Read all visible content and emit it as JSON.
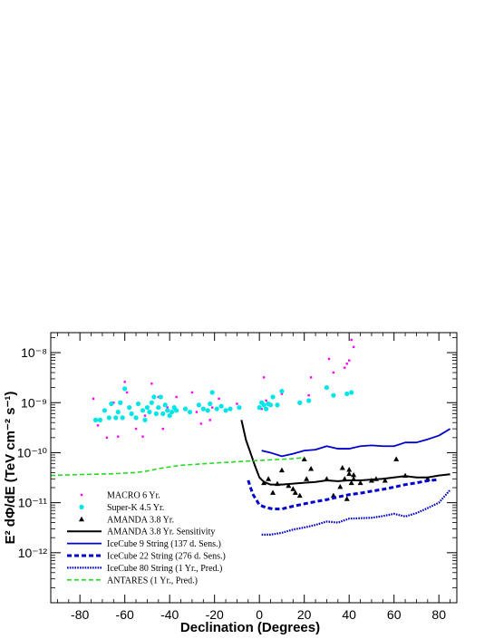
{
  "chart_data": {
    "type": "scatter",
    "title": "",
    "xlabel": "Declination (Degrees)",
    "ylabel": "E² dΦ/dE (TeV cm⁻² s⁻¹)",
    "xlim": [
      -93,
      88
    ],
    "ylim_log10": [
      -13,
      -7.6
    ],
    "y_scale": "log",
    "x_ticks": [
      -80,
      -60,
      -40,
      -20,
      0,
      20,
      40,
      60,
      80
    ],
    "x_tick_labels": [
      "-80",
      "-60",
      "-40",
      "-20",
      "0",
      "20",
      "40",
      "60",
      "80"
    ],
    "y_ticks_log10": [
      -12,
      -11,
      -10,
      -9,
      -8
    ],
    "y_tick_labels": [
      "10⁻¹²",
      "10⁻¹¹",
      "10⁻¹⁰",
      "10⁻⁹",
      "10⁻⁸"
    ],
    "legend_position": "lower-left",
    "series": [
      {
        "name": "MACRO 6 Yr.",
        "kind": "points",
        "marker": "dot",
        "color": "#ff00ff",
        "points": [
          [
            -74,
            1.2e-09
          ],
          [
            -72,
            3.5e-10
          ],
          [
            -68,
            2e-10
          ],
          [
            -65,
            1e-09
          ],
          [
            -63,
            2.1e-10
          ],
          [
            -60,
            2.6e-09
          ],
          [
            -59,
            1.6e-09
          ],
          [
            -55,
            3e-10
          ],
          [
            -52,
            2.1e-10
          ],
          [
            -51,
            5.5e-10
          ],
          [
            -48,
            2.4e-09
          ],
          [
            -45,
            1.3e-09
          ],
          [
            -43,
            3e-10
          ],
          [
            -41,
            8e-10
          ],
          [
            -37,
            1.3e-09
          ],
          [
            -30,
            1.6e-09
          ],
          [
            -28,
            6.5e-10
          ],
          [
            -26,
            3.8e-10
          ],
          [
            -22,
            4.5e-10
          ],
          [
            -21,
            8e-10
          ],
          [
            -18,
            1.2e-09
          ],
          [
            -10,
            9.5e-10
          ],
          [
            1,
            7.5e-10
          ],
          [
            2,
            3.2e-09
          ],
          [
            3,
            1.1e-09
          ],
          [
            8,
            8.5e-10
          ],
          [
            10,
            1.5e-09
          ],
          [
            18,
            9.5e-10
          ],
          [
            22,
            1.4e-09
          ],
          [
            23,
            3.2e-09
          ],
          [
            31,
            7.5e-09
          ],
          [
            33,
            4e-09
          ],
          [
            38,
            5e-09
          ],
          [
            39,
            6e-09
          ],
          [
            41,
            1.8e-08
          ],
          [
            42,
            1.3e-08
          ],
          [
            40,
            7e-09
          ]
        ]
      },
      {
        "name": "Super-K 4.5 Yr.",
        "kind": "points",
        "marker": "circle",
        "color": "#00e5e5",
        "points": [
          [
            -73,
            4.5e-10
          ],
          [
            -71,
            4.5e-10
          ],
          [
            -69,
            7e-10
          ],
          [
            -67,
            5e-10
          ],
          [
            -66,
            9.5e-10
          ],
          [
            -64,
            5e-10
          ],
          [
            -63,
            6.5e-10
          ],
          [
            -62,
            1e-09
          ],
          [
            -61,
            5e-10
          ],
          [
            -60,
            1.9e-09
          ],
          [
            -58,
            8e-10
          ],
          [
            -57,
            6e-10
          ],
          [
            -55,
            5e-10
          ],
          [
            -54,
            9.5e-10
          ],
          [
            -52,
            7e-10
          ],
          [
            -51,
            4.5e-10
          ],
          [
            -50,
            8e-10
          ],
          [
            -49,
            6.5e-10
          ],
          [
            -48,
            1e-09
          ],
          [
            -47,
            1.3e-09
          ],
          [
            -46,
            6e-10
          ],
          [
            -45,
            8e-10
          ],
          [
            -44,
            1.3e-09
          ],
          [
            -43,
            6e-10
          ],
          [
            -42,
            9e-10
          ],
          [
            -41,
            7e-10
          ],
          [
            -40,
            5.5e-10
          ],
          [
            -39,
            6.5e-10
          ],
          [
            -38,
            8e-10
          ],
          [
            -37,
            7e-10
          ],
          [
            -33,
            7.5e-10
          ],
          [
            -31,
            6.5e-10
          ],
          [
            -27,
            9e-10
          ],
          [
            -25,
            7.5e-10
          ],
          [
            -23,
            7e-10
          ],
          [
            -22,
            9.5e-10
          ],
          [
            -21,
            1.6e-09
          ],
          [
            -19,
            7.5e-10
          ],
          [
            -17,
            8.5e-10
          ],
          [
            -15,
            7e-10
          ],
          [
            -13,
            7.5e-10
          ],
          [
            -9,
            8e-10
          ],
          [
            0,
            8e-10
          ],
          [
            1,
            1e-09
          ],
          [
            2,
            9e-10
          ],
          [
            3,
            7.5e-10
          ],
          [
            4,
            9.5e-10
          ],
          [
            5,
            9e-10
          ],
          [
            6,
            1.3e-09
          ],
          [
            8,
            9e-10
          ],
          [
            10,
            1.7e-09
          ],
          [
            18,
            1e-09
          ],
          [
            22,
            1.1e-09
          ],
          [
            30,
            2e-09
          ],
          [
            33,
            1.4e-09
          ],
          [
            39,
            1.5e-09
          ],
          [
            41,
            1.6e-09
          ]
        ]
      },
      {
        "name": "AMANDA 3.8 Yr.",
        "kind": "points",
        "marker": "triangle",
        "color": "#000000",
        "points": [
          [
            2,
            2.5e-11
          ],
          [
            4,
            3e-11
          ],
          [
            6,
            1.6e-11
          ],
          [
            8,
            2.4e-11
          ],
          [
            10,
            4.5e-11
          ],
          [
            13,
            2.2e-11
          ],
          [
            15,
            1.9e-11
          ],
          [
            16,
            1.6e-11
          ],
          [
            18,
            1.4e-11
          ],
          [
            20,
            7.5e-11
          ],
          [
            21,
            3e-11
          ],
          [
            23,
            4.8e-11
          ],
          [
            30,
            3e-11
          ],
          [
            33,
            1.4e-11
          ],
          [
            36,
            2.1e-11
          ],
          [
            37,
            5e-11
          ],
          [
            38,
            3e-11
          ],
          [
            39,
            1.2e-11
          ],
          [
            40,
            3.8e-11
          ],
          [
            40,
            4.6e-11
          ],
          [
            41,
            2.5e-11
          ],
          [
            42,
            3.6e-11
          ],
          [
            42,
            3e-11
          ],
          [
            45,
            2.5e-11
          ],
          [
            50,
            2.8e-11
          ],
          [
            52,
            3e-11
          ],
          [
            56,
            2.8e-11
          ],
          [
            61,
            7.5e-11
          ],
          [
            65,
            3.5e-11
          ],
          [
            75,
            3e-11
          ]
        ]
      },
      {
        "name": "AMANDA 3.8 Yr. Sensitivity",
        "kind": "line",
        "style": "solid",
        "width": 2,
        "color": "#000000",
        "points": [
          [
            -8,
            4.5e-10
          ],
          [
            -6,
            1.8e-10
          ],
          [
            -4,
            1e-10
          ],
          [
            -2,
            5.5e-11
          ],
          [
            0,
            3.2e-11
          ],
          [
            2,
            2.6e-11
          ],
          [
            5,
            2.3e-11
          ],
          [
            10,
            2.3e-11
          ],
          [
            15,
            2.4e-11
          ],
          [
            20,
            2.5e-11
          ],
          [
            25,
            2.6e-11
          ],
          [
            30,
            2.8e-11
          ],
          [
            35,
            2.7e-11
          ],
          [
            40,
            2.8e-11
          ],
          [
            45,
            2.8e-11
          ],
          [
            50,
            2.9e-11
          ],
          [
            55,
            3e-11
          ],
          [
            60,
            3.2e-11
          ],
          [
            65,
            3.4e-11
          ],
          [
            70,
            3.2e-11
          ],
          [
            75,
            3.2e-11
          ],
          [
            80,
            3.5e-11
          ],
          [
            85,
            3.7e-11
          ]
        ]
      },
      {
        "name": "IceCube 9 String (137 d. Sens.)",
        "kind": "line",
        "style": "solid",
        "width": 1.8,
        "color": "#0000cc",
        "points": [
          [
            1,
            1.1e-10
          ],
          [
            5,
            1e-10
          ],
          [
            10,
            8.5e-11
          ],
          [
            15,
            9.5e-11
          ],
          [
            20,
            1.1e-10
          ],
          [
            25,
            1.15e-10
          ],
          [
            30,
            1.35e-10
          ],
          [
            35,
            1.2e-10
          ],
          [
            40,
            1.2e-10
          ],
          [
            45,
            1.35e-10
          ],
          [
            50,
            1.4e-10
          ],
          [
            55,
            1.35e-10
          ],
          [
            60,
            1.35e-10
          ],
          [
            65,
            1.6e-10
          ],
          [
            70,
            1.6e-10
          ],
          [
            75,
            1.85e-10
          ],
          [
            80,
            2.2e-10
          ],
          [
            85,
            3e-10
          ]
        ]
      },
      {
        "name": "IceCube 22 String (276 d. Sens.)",
        "kind": "line",
        "style": "dashed",
        "width": 3,
        "color": "#0000cc",
        "points": [
          [
            -5,
            2.8e-11
          ],
          [
            -3,
            1.5e-11
          ],
          [
            0,
            9e-12
          ],
          [
            3,
            8e-12
          ],
          [
            6,
            7.5e-12
          ],
          [
            10,
            7.5e-12
          ],
          [
            15,
            8.5e-12
          ],
          [
            20,
            9.5e-12
          ],
          [
            25,
            1.05e-11
          ],
          [
            30,
            1.15e-11
          ],
          [
            35,
            1.3e-11
          ],
          [
            40,
            1.45e-11
          ],
          [
            45,
            1.55e-11
          ],
          [
            50,
            1.7e-11
          ],
          [
            55,
            1.85e-11
          ],
          [
            60,
            2.05e-11
          ],
          [
            65,
            2.3e-11
          ],
          [
            70,
            2.5e-11
          ],
          [
            75,
            2.75e-11
          ],
          [
            80,
            2.9e-11
          ]
        ]
      },
      {
        "name": "IceCube 80 String (1 Yr., Pred.)",
        "kind": "line",
        "style": "dotted",
        "width": 2.2,
        "color": "#0000cc",
        "points": [
          [
            1,
            2.3e-12
          ],
          [
            5,
            2.3e-12
          ],
          [
            10,
            2.5e-12
          ],
          [
            15,
            2.9e-12
          ],
          [
            20,
            3.2e-12
          ],
          [
            25,
            3.6e-12
          ],
          [
            30,
            4.2e-12
          ],
          [
            35,
            4e-12
          ],
          [
            40,
            4.8e-12
          ],
          [
            45,
            4.9e-12
          ],
          [
            50,
            5e-12
          ],
          [
            55,
            5.4e-12
          ],
          [
            60,
            6e-12
          ],
          [
            65,
            5.3e-12
          ],
          [
            70,
            6.2e-12
          ],
          [
            75,
            7.8e-12
          ],
          [
            80,
            1e-11
          ],
          [
            85,
            1.8e-11
          ]
        ]
      },
      {
        "name": "ANTARES (1 Yr., Pred.)",
        "kind": "line",
        "style": "dashed",
        "width": 1.6,
        "color": "#22dd22",
        "points": [
          [
            -93,
            3.5e-11
          ],
          [
            -85,
            3.6e-11
          ],
          [
            -75,
            3.7e-11
          ],
          [
            -65,
            3.8e-11
          ],
          [
            -55,
            4e-11
          ],
          [
            -50,
            4.3e-11
          ],
          [
            -45,
            4.8e-11
          ],
          [
            -40,
            5.2e-11
          ],
          [
            -35,
            5.6e-11
          ],
          [
            -30,
            5.8e-11
          ],
          [
            -25,
            6e-11
          ],
          [
            -20,
            6.2e-11
          ],
          [
            -15,
            6.4e-11
          ],
          [
            -10,
            6.6e-11
          ],
          [
            -5,
            6.8e-11
          ],
          [
            0,
            7e-11
          ],
          [
            5,
            7.2e-11
          ],
          [
            10,
            7.4e-11
          ],
          [
            15,
            7.6e-11
          ],
          [
            20,
            8e-11
          ]
        ]
      }
    ]
  }
}
